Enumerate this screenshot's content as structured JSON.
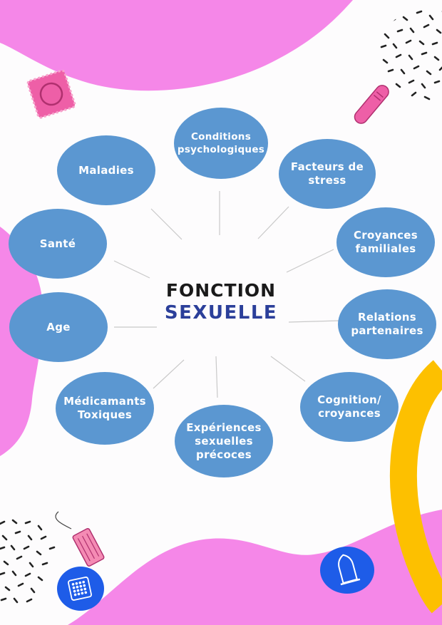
{
  "colors": {
    "node_fill": "#5b97d1",
    "pink_blob": "#f587e8",
    "accent_yellow": "#fdc000",
    "title_dark": "#1a1a1a",
    "title_blue": "#2b3f9a",
    "connector": "#c9c9c9"
  },
  "center": {
    "line1": "FONCTION",
    "line2": "SEXUELLE"
  },
  "nodes": [
    {
      "id": "conditions-psychologiques",
      "label": "Conditions\npsychologiques"
    },
    {
      "id": "facteurs-de-stress",
      "label": "Facteurs de\nstress"
    },
    {
      "id": "croyances-familiales",
      "label": "Croyances\nfamiliales"
    },
    {
      "id": "relations-partenaires",
      "label": "Relations\npartenaires"
    },
    {
      "id": "cognition-croyances",
      "label": "Cognition/\ncroyances"
    },
    {
      "id": "experiences-sexuelles-precoces",
      "label": "Expériences\nsexuelles\nprécoces"
    },
    {
      "id": "medicamants-toxiques",
      "label": "Médicamants\nToxiques"
    },
    {
      "id": "age",
      "label": "Age"
    },
    {
      "id": "sante",
      "label": "Santé"
    },
    {
      "id": "maladies",
      "label": "Maladies"
    }
  ],
  "decorations": [
    "condom-wrapper-icon",
    "tampon-icon",
    "pill-pack-icon",
    "condom-icon",
    "sanitary-pad-icon"
  ]
}
